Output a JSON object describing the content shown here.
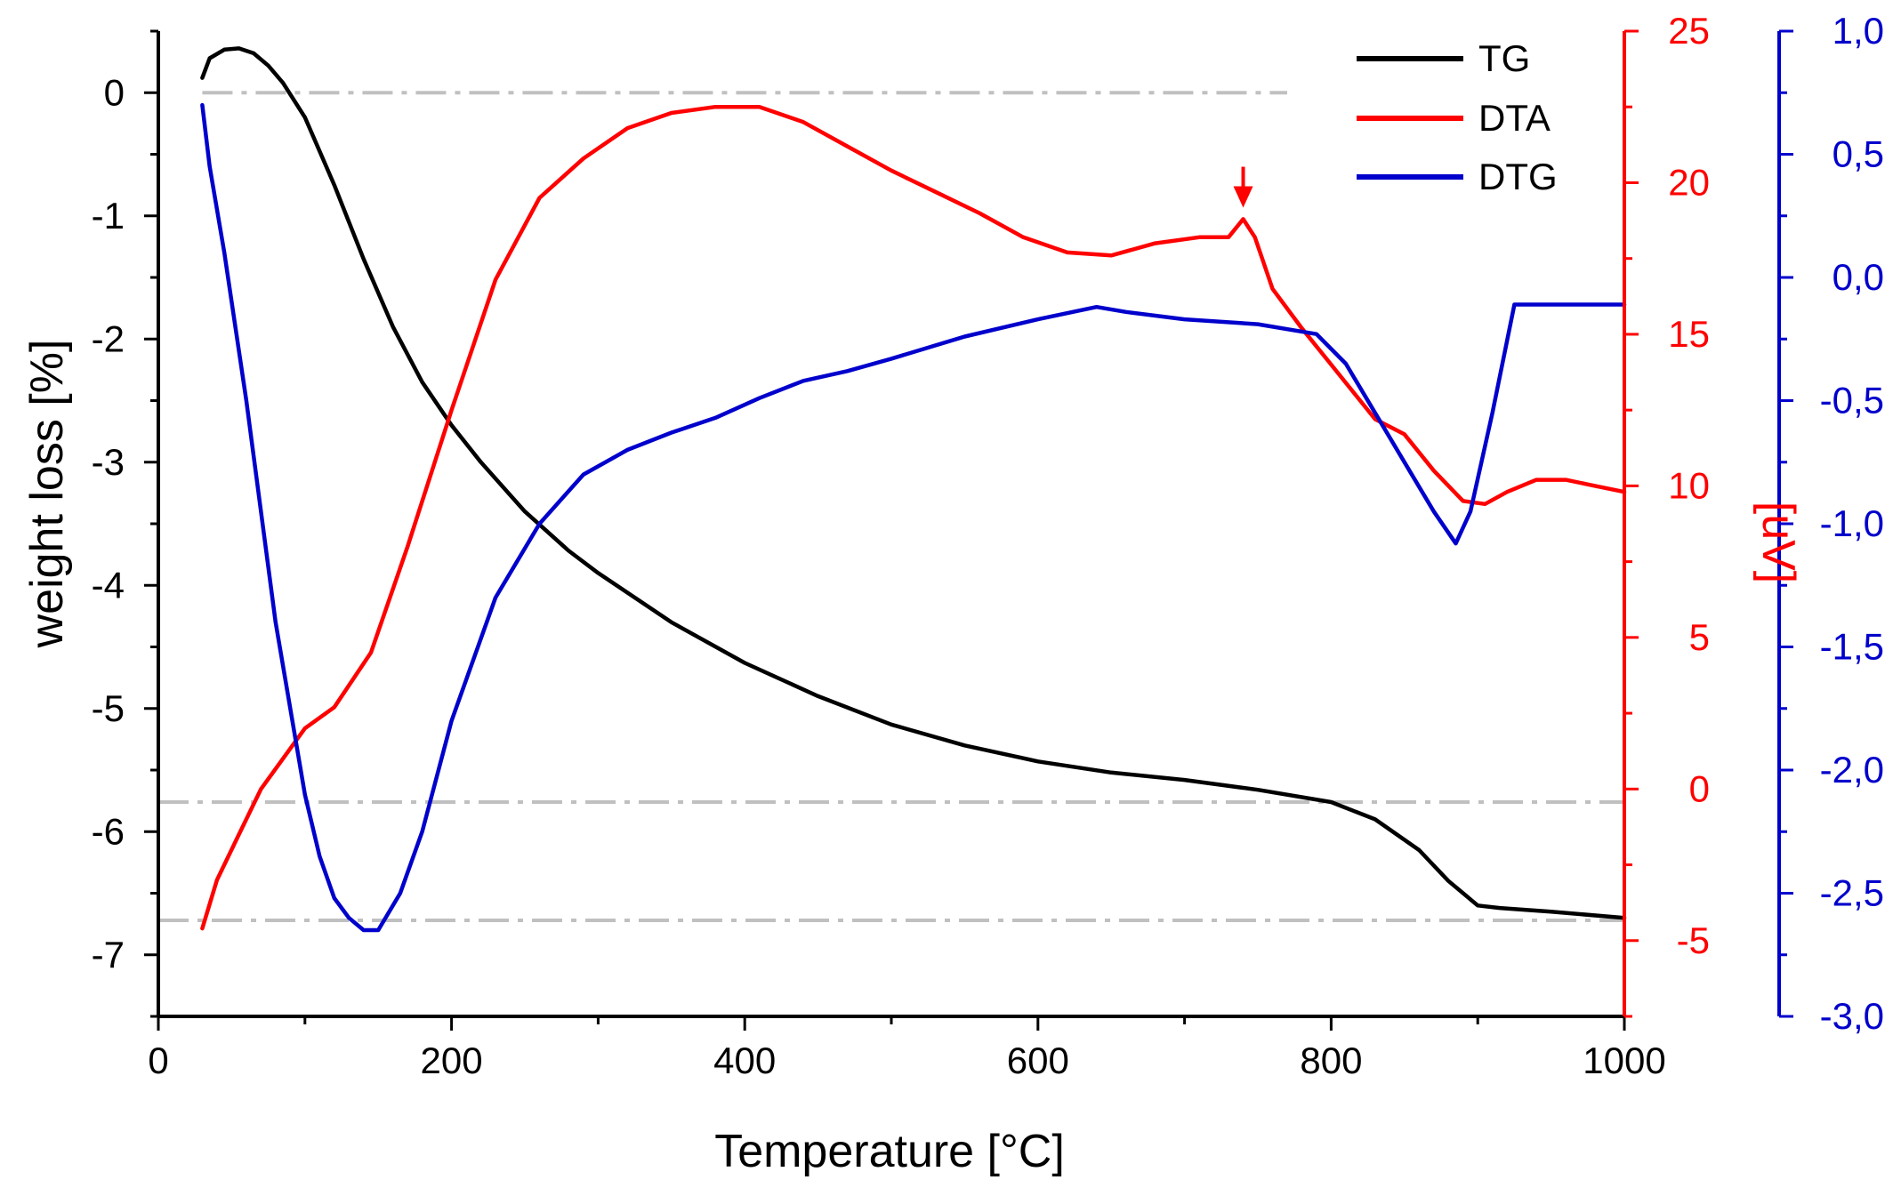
{
  "chart_data": {
    "type": "line",
    "title": "",
    "xlabel": "Temperature [°C]",
    "ylabel": "weight loss [%]",
    "y2label": "[uV]",
    "y3label": "",
    "xlim": [
      0,
      1000
    ],
    "ylim": [
      -7.5,
      0.5
    ],
    "y2lim": [
      -7.5,
      25
    ],
    "y3lim": [
      -3.0,
      1.0
    ],
    "x_ticks": [
      "0",
      "200",
      "400",
      "600",
      "800",
      "1000"
    ],
    "y_ticks": [
      "0",
      "-1",
      "-2",
      "-3",
      "-4",
      "-5",
      "-6",
      "-7"
    ],
    "y2_ticks": [
      "25",
      "20",
      "15",
      "10",
      "5",
      "0",
      "-5"
    ],
    "y3_ticks": [
      "1,0",
      "0,5",
      "0,0",
      "-0,5",
      "-1,0",
      "-1,5",
      "-2,0",
      "-2,5",
      "-3,0"
    ],
    "legend_position": "top-right",
    "colors": {
      "tg": "#000000",
      "dta": "#ff0000",
      "dtg": "#0000cc",
      "reference": "#c0c0c0",
      "y2_axis": "#ff0000",
      "y3_axis": "#0000cc"
    },
    "series": [
      {
        "name": "TG",
        "axis": "y",
        "x": [
          30,
          35,
          45,
          55,
          65,
          75,
          85,
          100,
          120,
          140,
          160,
          180,
          200,
          220,
          250,
          280,
          300,
          350,
          400,
          450,
          500,
          550,
          600,
          650,
          700,
          750,
          800,
          830,
          860,
          880,
          900,
          915,
          950,
          1000
        ],
        "values": [
          0.12,
          0.28,
          0.35,
          0.36,
          0.32,
          0.22,
          0.08,
          -0.2,
          -0.75,
          -1.35,
          -1.9,
          -2.35,
          -2.7,
          -3.0,
          -3.4,
          -3.72,
          -3.9,
          -4.3,
          -4.63,
          -4.9,
          -5.13,
          -5.3,
          -5.43,
          -5.52,
          -5.58,
          -5.66,
          -5.76,
          -5.9,
          -6.15,
          -6.4,
          -6.6,
          -6.62,
          -6.65,
          -6.7
        ]
      },
      {
        "name": "DTA",
        "axis": "y2",
        "x": [
          30,
          40,
          55,
          70,
          85,
          100,
          120,
          145,
          170,
          200,
          230,
          260,
          290,
          320,
          350,
          380,
          410,
          440,
          470,
          500,
          530,
          560,
          590,
          620,
          650,
          680,
          710,
          730,
          740,
          748,
          760,
          780,
          800,
          830,
          850,
          870,
          890,
          905,
          920,
          940,
          960,
          980,
          1000
        ],
        "values": [
          -4.6,
          -3.0,
          -1.5,
          0.0,
          1.0,
          2.0,
          2.7,
          4.5,
          8.0,
          12.5,
          16.8,
          19.5,
          20.8,
          21.8,
          22.3,
          22.5,
          22.5,
          22.0,
          21.2,
          20.4,
          19.7,
          19.0,
          18.2,
          17.7,
          17.6,
          18.0,
          18.2,
          18.2,
          18.8,
          18.2,
          16.5,
          15.2,
          14.0,
          12.2,
          11.7,
          10.5,
          9.5,
          9.4,
          9.8,
          10.2,
          10.2,
          10.0,
          9.8
        ]
      },
      {
        "name": "DTG",
        "axis": "y3",
        "x": [
          30,
          35,
          45,
          60,
          80,
          100,
          110,
          120,
          130,
          140,
          145,
          150,
          165,
          180,
          200,
          230,
          260,
          290,
          320,
          350,
          380,
          410,
          440,
          470,
          500,
          550,
          600,
          640,
          660,
          700,
          750,
          790,
          810,
          830,
          850,
          870,
          885,
          895,
          910,
          925,
          950,
          1000
        ],
        "values": [
          0.7,
          0.45,
          0.1,
          -0.5,
          -1.4,
          -2.1,
          -2.35,
          -2.52,
          -2.6,
          -2.65,
          -2.65,
          -2.65,
          -2.5,
          -2.25,
          -1.8,
          -1.3,
          -1.0,
          -0.8,
          -0.7,
          -0.63,
          -0.57,
          -0.49,
          -0.42,
          -0.38,
          -0.33,
          -0.24,
          -0.17,
          -0.12,
          -0.14,
          -0.17,
          -0.19,
          -0.23,
          -0.35,
          -0.55,
          -0.75,
          -0.95,
          -1.08,
          -0.95,
          -0.55,
          -0.11,
          -0.11,
          -0.11
        ]
      }
    ],
    "reference_lines": [
      {
        "axis": "y",
        "value": 0,
        "x_range": [
          30,
          770
        ]
      },
      {
        "axis": "y",
        "value": -5.76,
        "x_range": [
          0,
          1000
        ]
      },
      {
        "axis": "y",
        "value": -6.72,
        "x_range": [
          0,
          1000
        ]
      }
    ],
    "annotations": [
      {
        "type": "arrow",
        "series": "DTA",
        "x": 740,
        "y2": 19.0
      }
    ]
  }
}
